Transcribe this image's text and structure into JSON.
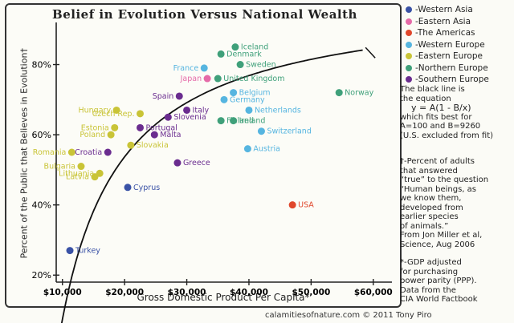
{
  "chart_data": {
    "type": "scatter",
    "title": "Belief in Evolution Versus National Wealth",
    "xlabel": "Gross Domestic Product Per Capita*",
    "ylabel": "Percent of the Public that Believes in Evolution†",
    "xlim": [
      9000,
      63000
    ],
    "ylim": [
      18,
      92
    ],
    "xticks": [
      10000,
      20000,
      30000,
      40000,
      50000,
      60000
    ],
    "xtick_labels": [
      "$10,000",
      "$20,000",
      "$30,000",
      "$40,000",
      "$50,000",
      "$60,000"
    ],
    "yticks": [
      20,
      40,
      60,
      80
    ],
    "ytick_labels": [
      "20%",
      "40%",
      "60%",
      "80%"
    ],
    "grid": false,
    "legend_position": "right",
    "fit": {
      "A": 100,
      "B": 9260,
      "x_start": 9800,
      "x_end": 58500
    },
    "groups": [
      {
        "name": "-Western Asia",
        "color": "#3a52a6"
      },
      {
        "name": "-Eastern Asia",
        "color": "#e56aa8"
      },
      {
        "name": "-The Americas",
        "color": "#e0472c"
      },
      {
        "name": "-Western Europe",
        "color": "#56b5e0"
      },
      {
        "name": "-Eastern Europe",
        "color": "#c9c437"
      },
      {
        "name": "-Northern Europe",
        "color": "#3fa07a"
      },
      {
        "name": "-Southern Europe",
        "color": "#6a2c8f"
      }
    ],
    "points": [
      {
        "label": "Turkey",
        "x": 11200,
        "y": 27,
        "group": 0
      },
      {
        "label": "Cyprus",
        "x": 20500,
        "y": 45,
        "group": 0
      },
      {
        "label": "Japan",
        "x": 33300,
        "y": 76,
        "group": 1
      },
      {
        "label": "USA",
        "x": 47000,
        "y": 40,
        "group": 2
      },
      {
        "label": "France",
        "x": 32800,
        "y": 79,
        "group": 3
      },
      {
        "label": "Belgium",
        "x": 37500,
        "y": 72,
        "group": 3
      },
      {
        "label": "Germany",
        "x": 36000,
        "y": 70,
        "group": 3
      },
      {
        "label": "Netherlands",
        "x": 40000,
        "y": 67,
        "group": 3
      },
      {
        "label": "Switzerland",
        "x": 42000,
        "y": 61,
        "group": 3
      },
      {
        "label": "Austria",
        "x": 39800,
        "y": 56,
        "group": 3
      },
      {
        "label": "Hungary",
        "x": 18700,
        "y": 67,
        "group": 4
      },
      {
        "label": "Czech Rep.",
        "x": 22500,
        "y": 66,
        "group": 4
      },
      {
        "label": "Estonia",
        "x": 18400,
        "y": 62,
        "group": 4
      },
      {
        "label": "Poland",
        "x": 17800,
        "y": 60,
        "group": 4
      },
      {
        "label": "Romania",
        "x": 11500,
        "y": 55,
        "group": 4
      },
      {
        "label": "Slovakia",
        "x": 21000,
        "y": 57,
        "group": 4
      },
      {
        "label": "Bulgaria",
        "x": 13000,
        "y": 51,
        "group": 4
      },
      {
        "label": "Latvia",
        "x": 15200,
        "y": 48,
        "group": 4
      },
      {
        "label": "Lithuania",
        "x": 16000,
        "y": 49,
        "group": 4
      },
      {
        "label": "Denmark",
        "x": 35500,
        "y": 83,
        "group": 5
      },
      {
        "label": "Iceland",
        "x": 37800,
        "y": 85,
        "group": 5
      },
      {
        "label": "Sweden",
        "x": 38600,
        "y": 80,
        "group": 5
      },
      {
        "label": "United Kingdom",
        "x": 35000,
        "y": 76,
        "group": 5
      },
      {
        "label": "Finland",
        "x": 35500,
        "y": 64,
        "group": 5
      },
      {
        "label": "Ireland",
        "x": 37500,
        "y": 64,
        "group": 5
      },
      {
        "label": "Norway",
        "x": 54500,
        "y": 72,
        "group": 5
      },
      {
        "label": "Spain",
        "x": 28800,
        "y": 71,
        "group": 6
      },
      {
        "label": "Italy",
        "x": 30000,
        "y": 67,
        "group": 6
      },
      {
        "label": "Slovenia",
        "x": 27000,
        "y": 65,
        "group": 6
      },
      {
        "label": "Portugal",
        "x": 22500,
        "y": 62,
        "group": 6
      },
      {
        "label": "Malta",
        "x": 24800,
        "y": 60,
        "group": 6
      },
      {
        "label": "Greece",
        "x": 28500,
        "y": 52,
        "group": 6
      },
      {
        "label": "Croatia",
        "x": 17300,
        "y": 55,
        "group": 6
      }
    ]
  },
  "notes": {
    "eq_line1": "The black line is",
    "eq_line2": "the equation",
    "eq_formula": "y = A(1 - B/x)",
    "eq_line3": "which fits best for",
    "eq_line4": "A=100 and B=9260",
    "eq_line5": "(U.S. excluded from fit)",
    "def_lines": [
      "†-Percent of adults",
      "that answered",
      "“true” to the question",
      "“Human beings, as",
      "we know them,",
      "developed from",
      "earlier species",
      "of animals.”",
      "From Jon Miller et al,",
      "Science, Aug 2006"
    ],
    "gdp_lines": [
      "*-GDP adjusted",
      "for purchasing",
      "power parity (PPP).",
      "Data from the",
      "CIA World Factbook"
    ]
  },
  "credit": "calamitiesofnature.com  © 2011 Tony Piro"
}
